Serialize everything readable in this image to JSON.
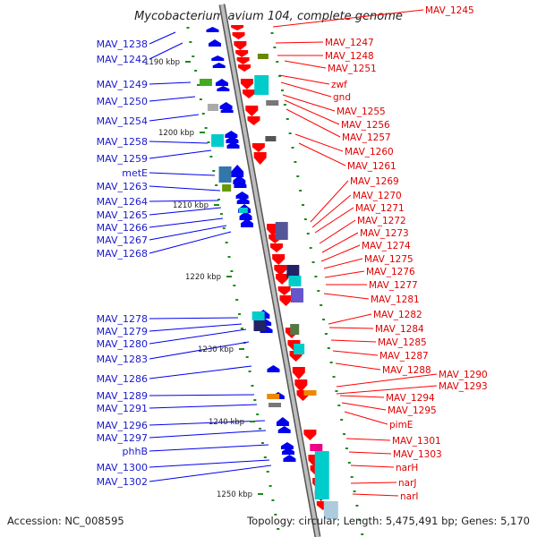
{
  "title": "Mycobacterium avium 104, complete genome",
  "footer": {
    "accession": "Accession: NC_008595",
    "topology": "Topology: circular; Length: 5,475,491 bp; Genes: 5,170"
  },
  "colors": {
    "forward_strand": "#ff0000",
    "reverse_strand": "#0000ee",
    "left_label": "#1a1acc",
    "right_label": "#e00000",
    "backbone": "#999999",
    "tick": "#1a8a1a"
  },
  "kbp_ticks": [
    "1190 kbp",
    "1200 kbp",
    "1210 kbp",
    "1220 kbp",
    "1230 kbp",
    "1240 kbp",
    "1250 kbp"
  ],
  "left_genes": [
    "MAV_1238",
    "MAV_1242",
    "MAV_1249",
    "MAV_1250",
    "MAV_1254",
    "MAV_1258",
    "MAV_1259",
    "metE",
    "MAV_1263",
    "MAV_1264",
    "MAV_1265",
    "MAV_1266",
    "MAV_1267",
    "MAV_1268",
    "MAV_1278",
    "MAV_1279",
    "MAV_1280",
    "MAV_1283",
    "MAV_1286",
    "MAV_1289",
    "MAV_1291",
    "MAV_1296",
    "MAV_1297",
    "phhB",
    "MAV_1300",
    "MAV_1302"
  ],
  "right_genes": [
    "MAV_1245",
    "MAV_1247",
    "MAV_1248",
    "MAV_1251",
    "zwf",
    "gnd",
    "MAV_1255",
    "MAV_1256",
    "MAV_1257",
    "MAV_1260",
    "MAV_1261",
    "MAV_1269",
    "MAV_1270",
    "MAV_1271",
    "MAV_1272",
    "MAV_1273",
    "MAV_1274",
    "MAV_1275",
    "MAV_1276",
    "MAV_1277",
    "MAV_1281",
    "MAV_1282",
    "MAV_1284",
    "MAV_1285",
    "MAV_1287",
    "MAV_1288",
    "MAV_1290",
    "MAV_1293",
    "MAV_1294",
    "MAV_1295",
    "pimE",
    "MAV_1301",
    "MAV_1303",
    "narH",
    "narJ",
    "narI"
  ]
}
